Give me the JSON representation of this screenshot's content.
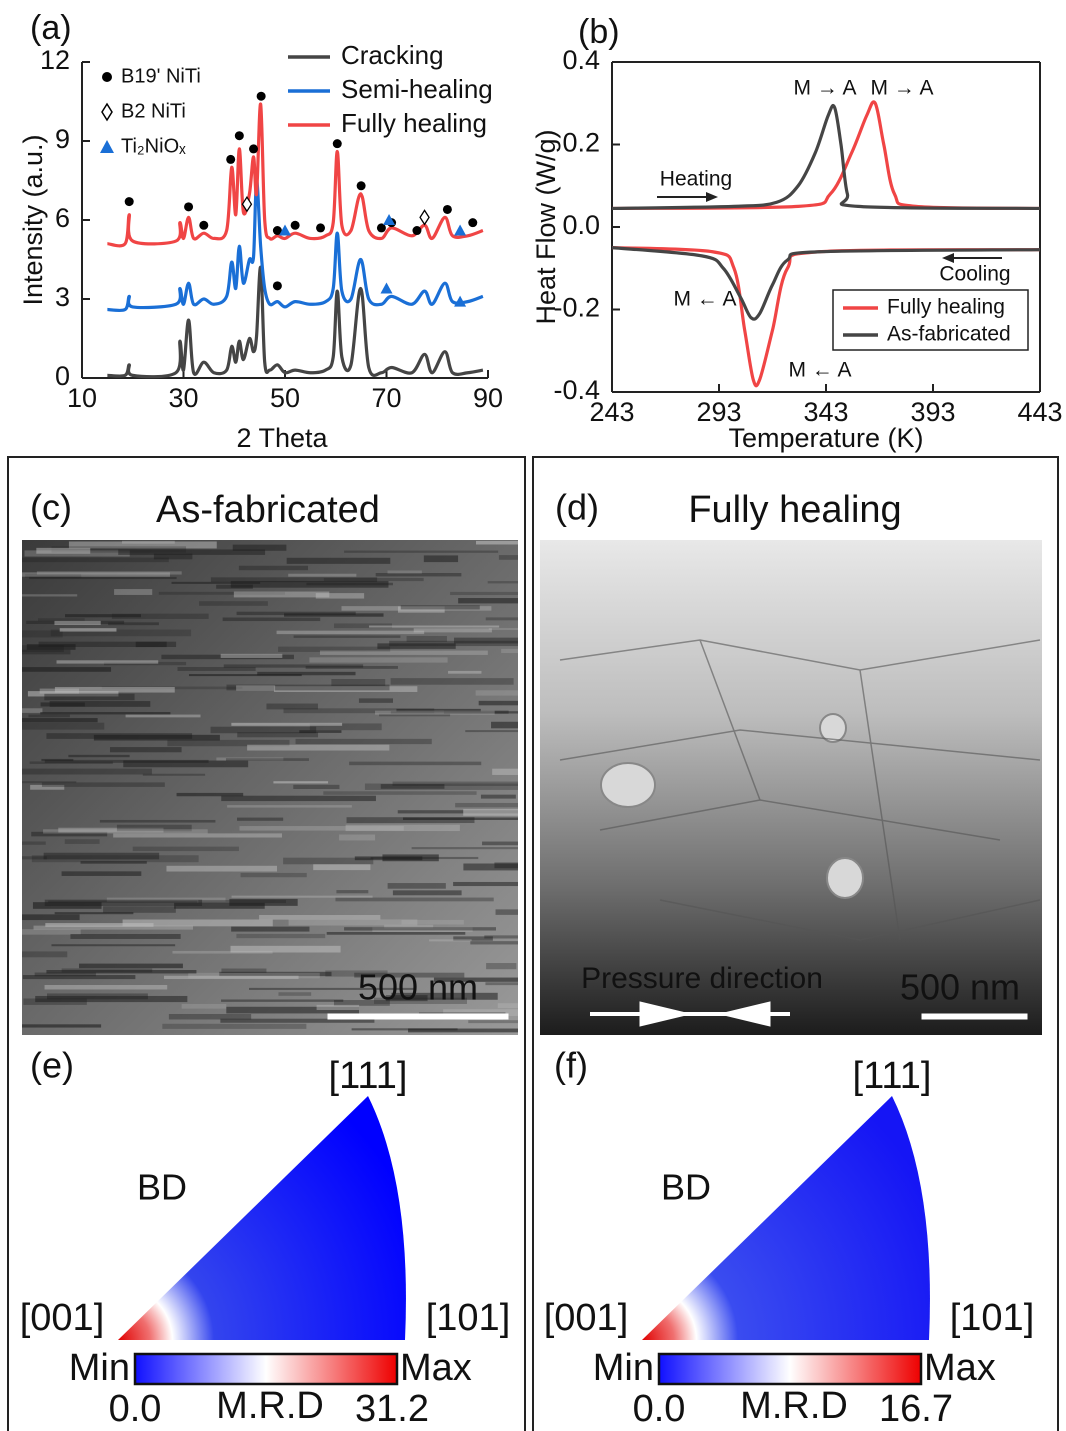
{
  "chart_data": [
    {
      "type": "line",
      "panel_label": "(a)",
      "xlabel": "2 Theta",
      "ylabel": "Intensity (a.u.)",
      "xlim": [
        10,
        90
      ],
      "ylim": [
        0,
        12
      ],
      "xticks": [
        10,
        30,
        50,
        70,
        90
      ],
      "yticks": [
        0,
        3,
        6,
        9,
        12
      ],
      "x": [
        15,
        18.5,
        19.3,
        20,
        28.5,
        29.3,
        30,
        31,
        32,
        34,
        36,
        38.5,
        39.5,
        40.3,
        41,
        41.8,
        43,
        43.8,
        44.4,
        45.2,
        46,
        47,
        48.5,
        50,
        52,
        55,
        58,
        59.5,
        60.3,
        61.2,
        63,
        64.9,
        66.5,
        69,
        71,
        75,
        77.5,
        79,
        81.5,
        83,
        86,
        89
      ],
      "series": [
        {
          "name": "Cracking",
          "color": "#454545",
          "values": [
            0.1,
            0.1,
            0.5,
            0.1,
            0.2,
            1.4,
            0.3,
            2.2,
            0.2,
            0.6,
            0.2,
            0.3,
            1.2,
            0.6,
            1.4,
            0.7,
            1.5,
            1.0,
            1.6,
            4.2,
            0.6,
            0.3,
            0.5,
            0.2,
            0.3,
            0.2,
            0.3,
            0.8,
            3.3,
            0.8,
            0.5,
            3.4,
            0.4,
            0.2,
            0.4,
            0.2,
            0.9,
            0.2,
            1.0,
            0.2,
            0.2,
            0.3
          ]
        },
        {
          "name": "Semi-healing",
          "color": "#1a6fd6",
          "values": [
            2.6,
            2.6,
            3.1,
            2.7,
            2.8,
            3.4,
            2.8,
            3.6,
            2.8,
            3.0,
            2.8,
            3.1,
            4.4,
            3.4,
            5.0,
            3.6,
            4.5,
            4.6,
            7.5,
            5.0,
            3.4,
            2.8,
            2.9,
            2.7,
            2.9,
            2.8,
            2.9,
            3.4,
            5.5,
            3.3,
            3.0,
            4.5,
            3.0,
            2.8,
            3.1,
            2.8,
            3.3,
            2.8,
            3.6,
            2.9,
            2.9,
            3.1
          ]
        },
        {
          "name": "Fully healing",
          "color": "#f04545",
          "values": [
            5.1,
            5.1,
            6.2,
            5.2,
            5.2,
            5.9,
            5.3,
            6.1,
            5.3,
            5.5,
            5.3,
            5.6,
            8.0,
            6.2,
            8.7,
            6.3,
            7.0,
            8.4,
            7.0,
            10.4,
            6.0,
            5.3,
            5.4,
            5.3,
            5.5,
            5.3,
            5.4,
            5.9,
            8.6,
            5.8,
            5.6,
            7.0,
            5.6,
            5.3,
            5.7,
            5.4,
            5.8,
            5.3,
            6.1,
            5.4,
            5.4,
            5.6
          ]
        }
      ],
      "markers": [
        {
          "name": "B19' NiTi",
          "shape": "circle",
          "color": "#000000",
          "x": [
            19.3,
            31,
            34,
            39.3,
            41,
            43.8,
            45.3,
            48.5,
            52,
            57,
            60.3,
            65,
            69,
            71,
            76,
            82,
            87,
            48.5
          ],
          "values": [
            6.7,
            6.5,
            5.8,
            8.3,
            9.2,
            8.7,
            10.7,
            5.6,
            5.8,
            5.7,
            8.9,
            7.3,
            5.7,
            5.9,
            5.6,
            6.4,
            5.9,
            3.5
          ]
        },
        {
          "name": "B2 NiTi",
          "shape": "diamond",
          "color": "#000000",
          "x": [
            42.5,
            77.5
          ],
          "values": [
            6.6,
            6.1
          ]
        },
        {
          "name": "Ti₂NiOₓ",
          "shape": "triangle",
          "color": "#1a6fd6",
          "x": [
            50,
            70.5,
            84.5,
            70,
            84.5
          ],
          "values": [
            5.6,
            6.0,
            5.6,
            3.4,
            2.9
          ]
        }
      ]
    },
    {
      "type": "line",
      "panel_label": "(b)",
      "xlabel": "Temperature (K)",
      "ylabel": "Heat Flow (W/g)",
      "xlim": [
        243,
        443
      ],
      "ylim": [
        -0.4,
        0.4
      ],
      "xticks": [
        243,
        293,
        343,
        393,
        443
      ],
      "yticks": [
        -0.4,
        -0.2,
        {
          "value": 0,
          "label": "0.0"
        },
        0.2,
        0.4
      ],
      "series": [
        {
          "name": "Fully healing",
          "color": "#f04545",
          "x": [
            243,
            330,
            345,
            355,
            362,
            366,
            370,
            375,
            385,
            443,
            null,
            443,
            340,
            325,
            318,
            312,
            309,
            305,
            300,
            290,
            243
          ],
          "values": [
            0.045,
            0.05,
            0.08,
            0.18,
            0.27,
            0.3,
            0.2,
            0.08,
            0.05,
            0.045,
            null,
            -0.055,
            -0.06,
            -0.1,
            -0.25,
            -0.37,
            -0.37,
            -0.25,
            -0.1,
            -0.06,
            -0.05
          ]
        },
        {
          "name": "As-fabricated",
          "color": "#454545",
          "x": [
            243,
            300,
            320,
            330,
            338,
            344,
            347,
            350,
            353,
            358,
            443,
            null,
            443,
            340,
            325,
            318,
            312,
            308,
            303,
            295,
            285,
            243
          ],
          "values": [
            0.045,
            0.05,
            0.06,
            0.1,
            0.18,
            0.27,
            0.29,
            0.2,
            0.08,
            0.05,
            0.045,
            null,
            -0.055,
            -0.06,
            -0.08,
            -0.14,
            -0.21,
            -0.22,
            -0.17,
            -0.1,
            -0.07,
            -0.05
          ]
        }
      ],
      "annotations": [
        {
          "text": "M → A",
          "color": "#222222"
        },
        {
          "text": "M → A",
          "color": "#f04545"
        },
        {
          "text": "Heating",
          "color": "#222222"
        },
        {
          "text": "Cooling",
          "color": "#222222"
        },
        {
          "text": "M ← A",
          "color": "#222222"
        },
        {
          "text": "M ← A",
          "color": "#f04545"
        }
      ]
    }
  ],
  "micrographs": [
    {
      "panel_label": "(c)",
      "title": "As-fabricated",
      "scale_bar": "500 nm"
    },
    {
      "panel_label": "(d)",
      "title": "Fully healing",
      "scale_bar": "500 nm",
      "annotation": "Pressure direction"
    }
  ],
  "pole_figures": [
    {
      "panel_label": "(e)",
      "axis": "BD",
      "directions": [
        "[111]",
        "[001]",
        "[101]"
      ],
      "min_label": "Min",
      "max_label": "Max",
      "min": "0.0",
      "quantity": "M.R.D",
      "max": "31.2"
    },
    {
      "panel_label": "(f)",
      "axis": "BD",
      "directions": [
        "[111]",
        "[001]",
        "[101]"
      ],
      "min_label": "Min",
      "max_label": "Max",
      "min": "0.0",
      "quantity": "M.R.D",
      "max": "16.7"
    }
  ]
}
